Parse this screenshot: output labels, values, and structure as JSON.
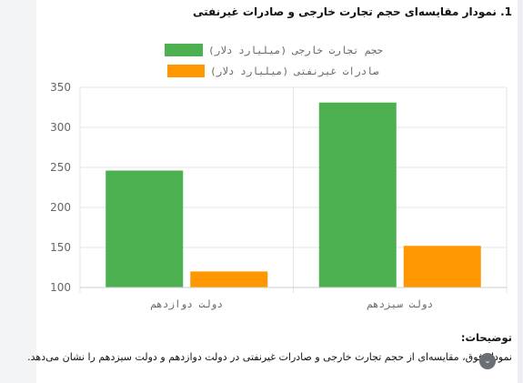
{
  "heading": "1. نمودار مقایسه‌ای حجم تجارت خارجی و صادرات غیرنفتی",
  "notes": {
    "title": "توضیحات:",
    "text": "نمودار فوق، مقایسه‌ای از حجم تجارت خارجی و صادرات غیرنفتی در دولت دوازدهم و دولت سیزدهم را نشان می‌دهد."
  },
  "badge_icon": "scroll-down-icon",
  "colors": {
    "foreign_trade": "#4caf50",
    "non_oil_exports": "#ff9800",
    "grid": "#e6e6e6",
    "axis_text": "#666666"
  },
  "chart_data": {
    "type": "bar",
    "categories": [
      "دولت دوازدهم",
      "دولت سیزدهم"
    ],
    "series": [
      {
        "name": "حجم تجارت خارجی (میلیارد دلار)",
        "values": [
          246,
          331
        ]
      },
      {
        "name": "صادرات غیرنفتی (میلیارد دلار)",
        "values": [
          120,
          152
        ]
      }
    ],
    "ylim": [
      100,
      350
    ],
    "yticks": [
      "100",
      "150",
      "200",
      "250",
      "300",
      "350"
    ],
    "legend": "top",
    "grid": true
  }
}
